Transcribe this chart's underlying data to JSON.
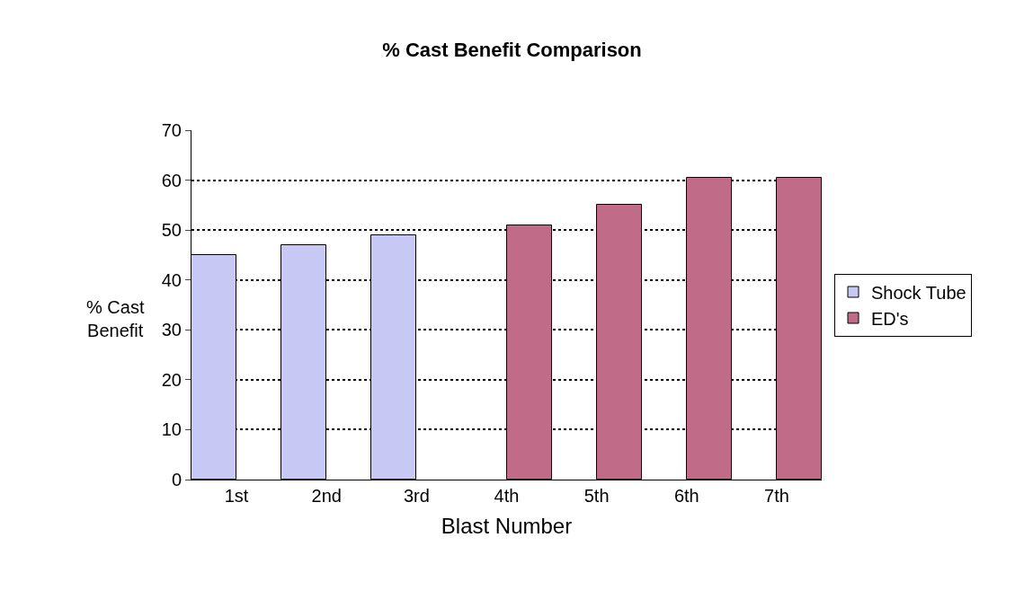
{
  "chart_data": {
    "type": "bar",
    "title": "% Cast Benefit Comparison",
    "xlabel": "Blast Number",
    "ylabel": "% Cast\nBenefit",
    "categories": [
      "1st",
      "2nd",
      "3rd",
      "4th",
      "5th",
      "6th",
      "7th"
    ],
    "series": [
      {
        "name": "Shock Tube",
        "color": "#c8c8f4",
        "values": [
          45,
          47,
          49,
          null,
          null,
          null,
          null
        ]
      },
      {
        "name": "ED's",
        "color": "#c06c88",
        "values": [
          null,
          null,
          null,
          51,
          55,
          60.5,
          60.5
        ]
      }
    ],
    "ylim": [
      0,
      70
    ],
    "yticks": [
      0,
      10,
      20,
      30,
      40,
      50,
      60,
      70
    ],
    "grid": "y",
    "legend": "right"
  }
}
